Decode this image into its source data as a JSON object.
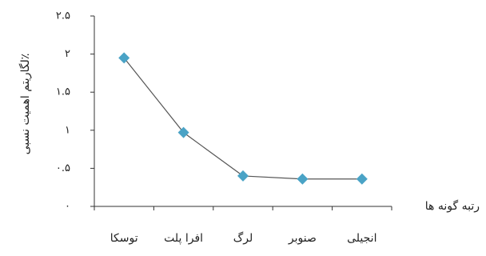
{
  "chart_data": {
    "type": "line",
    "y_label": "لگاریتم اهمیت نسبی٪",
    "x_label": "رتبه گونه ها",
    "categories": [
      "توسکا",
      "افرا پلت",
      "لرگ",
      "صنوبر",
      "انجیلی"
    ],
    "series": [
      {
        "name": "لگاریتم اهمیت نسبی",
        "color": "#4aa3c6",
        "line_color": "#555555",
        "values": [
          1.95,
          0.97,
          0.4,
          0.36,
          0.36
        ]
      }
    ],
    "ylim": [
      0,
      2.5
    ],
    "yticks": [
      {
        "value": 0,
        "label": "۰"
      },
      {
        "value": 0.5,
        "label": "۰.۵"
      },
      {
        "value": 1,
        "label": "۱"
      },
      {
        "value": 1.5,
        "label": "۱.۵"
      },
      {
        "value": 2,
        "label": "۲"
      },
      {
        "value": 2.5,
        "label": "۲.۵"
      }
    ]
  }
}
